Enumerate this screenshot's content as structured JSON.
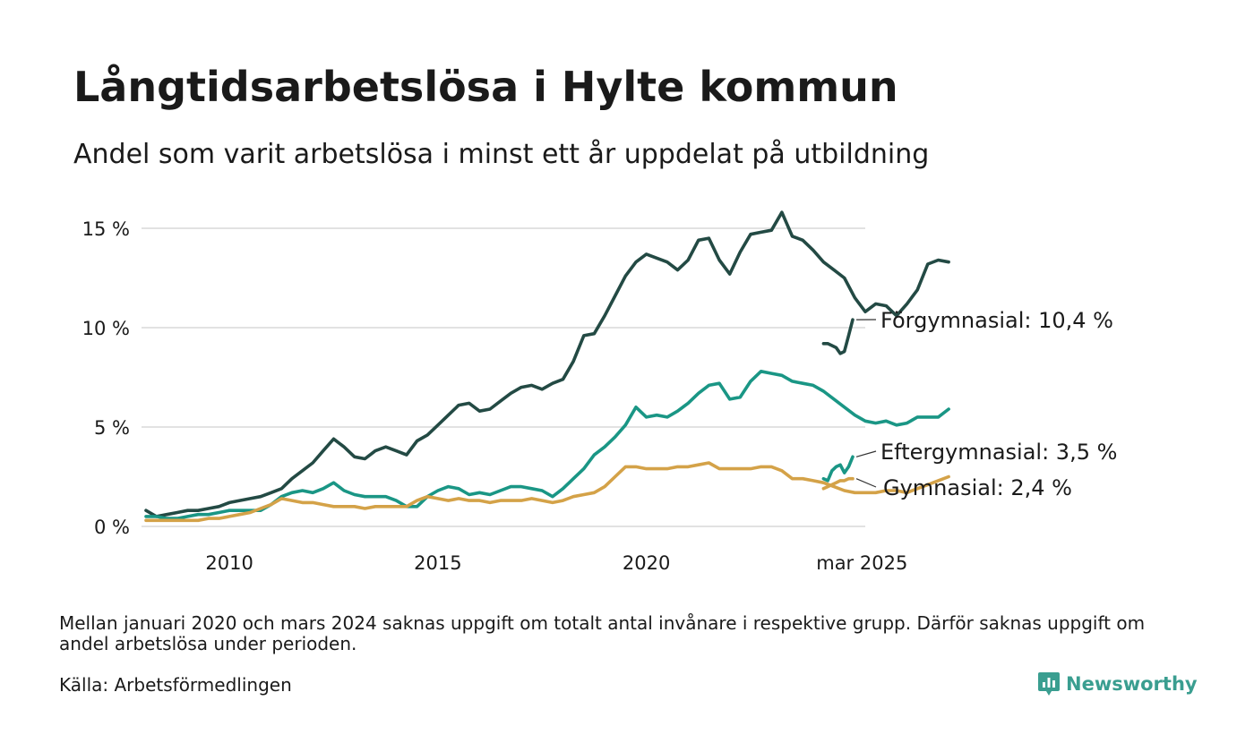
{
  "header": {
    "title": "Långtidsarbetslösa i Hylte kommun",
    "subtitle": "Andel som varit arbetslösa i minst ett år uppdelat på utbildning"
  },
  "footer": {
    "note": "Mellan januari 2020 och mars 2024 saknas uppgift om totalt antal invånare i respektive grupp. Därför saknas uppgift om andel arbetslösa under perioden.",
    "source": "Källa: Arbetsförmedlingen",
    "brand": "Newsworthy",
    "brand_color": "#3a9e90"
  },
  "chart_data": {
    "type": "line",
    "x_unit": "year",
    "xlim": [
      2008.0,
      2025.25
    ],
    "ylim": [
      0,
      16
    ],
    "y_ticks": [
      0,
      5,
      10,
      15
    ],
    "y_tick_labels": [
      "0 %",
      "5 %",
      "10 %",
      "15 %"
    ],
    "x_ticks": [
      2010,
      2015,
      2020,
      2025.17
    ],
    "x_tick_labels": [
      "2010",
      "2015",
      "2020",
      "mar 2025"
    ],
    "grid": true,
    "legend": "direct-labels-right",
    "series": [
      {
        "name": "Förgymnasial",
        "end_label": "Förgymnasial: 10,4 %",
        "color": "#234a44",
        "segments": [
          {
            "x_start": 2008.0,
            "x_step": 0.25,
            "values": [
              0.8,
              0.5,
              0.6,
              0.7,
              0.8,
              0.8,
              0.9,
              1.0,
              1.2,
              1.3,
              1.4,
              1.5,
              1.7,
              1.9,
              2.4,
              2.8,
              3.2,
              3.8,
              4.4,
              4.0,
              3.5,
              3.4,
              3.8,
              4.0,
              3.8,
              3.6,
              4.3,
              4.6,
              5.1,
              5.6,
              6.1,
              6.2,
              5.8,
              5.9,
              6.3,
              6.7,
              7.0,
              7.1,
              6.9,
              7.2,
              7.4,
              8.3,
              9.6,
              9.7,
              10.6,
              11.6,
              12.6,
              13.3,
              13.7,
              13.5,
              13.3,
              12.9,
              13.4,
              14.4,
              14.5,
              13.4,
              12.7,
              13.8,
              14.7,
              14.8,
              14.9,
              15.8,
              14.6,
              14.4,
              13.9,
              13.3,
              12.9,
              12.5,
              11.5,
              10.8,
              11.2,
              11.1,
              10.6,
              11.2,
              11.9,
              13.2,
              13.4,
              13.3
            ]
          },
          {
            "x_start": 2024.25,
            "x_step": 0.1,
            "values": [
              9.2,
              9.2,
              9.1,
              9.0,
              8.7,
              8.8,
              9.6,
              10.4
            ]
          }
        ]
      },
      {
        "name": "Eftergymnasial",
        "end_label": "Eftergymnasial:  3,5 %",
        "color": "#1a9685",
        "segments": [
          {
            "x_start": 2008.0,
            "x_step": 0.25,
            "values": [
              0.5,
              0.5,
              0.4,
              0.4,
              0.5,
              0.6,
              0.6,
              0.7,
              0.8,
              0.8,
              0.8,
              0.8,
              1.1,
              1.5,
              1.7,
              1.8,
              1.7,
              1.9,
              2.2,
              1.8,
              1.6,
              1.5,
              1.5,
              1.5,
              1.3,
              1.0,
              1.0,
              1.5,
              1.8,
              2.0,
              1.9,
              1.6,
              1.7,
              1.6,
              1.8,
              2.0,
              2.0,
              1.9,
              1.8,
              1.5,
              1.9,
              2.4,
              2.9,
              3.6,
              4.0,
              4.5,
              5.1,
              6.0,
              5.5,
              5.6,
              5.5,
              5.8,
              6.2,
              6.7,
              7.1,
              7.2,
              6.4,
              6.5,
              7.3,
              7.8,
              7.7,
              7.6,
              7.3,
              7.2,
              7.1,
              6.8,
              6.4,
              6.0,
              5.6,
              5.3,
              5.2,
              5.3,
              5.1,
              5.2,
              5.5,
              5.5,
              5.5,
              5.9
            ]
          },
          {
            "x_start": 2024.25,
            "x_step": 0.1,
            "values": [
              2.4,
              2.3,
              2.8,
              3.0,
              3.1,
              2.7,
              3.0,
              3.5
            ]
          }
        ]
      },
      {
        "name": "Gymnasial",
        "end_label": "Gymnasial:  2,4 %",
        "color": "#d4a248",
        "segments": [
          {
            "x_start": 2008.0,
            "x_step": 0.25,
            "values": [
              0.3,
              0.3,
              0.3,
              0.3,
              0.3,
              0.3,
              0.4,
              0.4,
              0.5,
              0.6,
              0.7,
              0.9,
              1.1,
              1.4,
              1.3,
              1.2,
              1.2,
              1.1,
              1.0,
              1.0,
              1.0,
              0.9,
              1.0,
              1.0,
              1.0,
              1.0,
              1.3,
              1.5,
              1.4,
              1.3,
              1.4,
              1.3,
              1.3,
              1.2,
              1.3,
              1.3,
              1.3,
              1.4,
              1.3,
              1.2,
              1.3,
              1.5,
              1.6,
              1.7,
              2.0,
              2.5,
              3.0,
              3.0,
              2.9,
              2.9,
              2.9,
              3.0,
              3.0,
              3.1,
              3.2,
              2.9,
              2.9,
              2.9,
              2.9,
              3.0,
              3.0,
              2.8,
              2.4,
              2.4,
              2.3,
              2.2,
              2.0,
              1.8,
              1.7,
              1.7,
              1.7,
              1.8,
              1.8,
              1.7,
              1.9,
              2.1,
              2.3,
              2.5
            ]
          },
          {
            "x_start": 2024.25,
            "x_step": 0.1,
            "values": [
              1.9,
              2.0,
              2.1,
              2.2,
              2.3,
              2.3,
              2.4,
              2.4
            ]
          }
        ]
      }
    ]
  }
}
